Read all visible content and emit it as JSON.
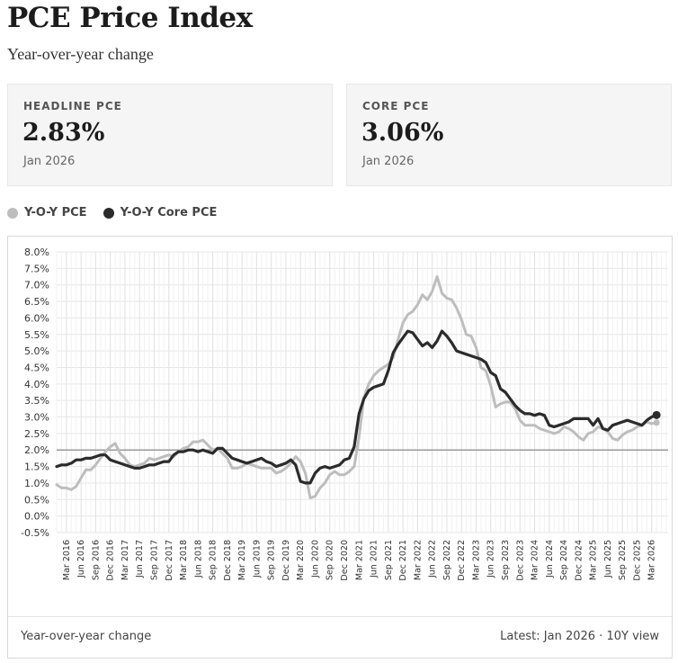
{
  "page": {
    "title": "PCE Price Index",
    "subtitle": "Year-over-year change"
  },
  "cards": [
    {
      "label": "HEADLINE PCE",
      "value": "2.83%",
      "date": "Jan 2026"
    },
    {
      "label": "CORE PCE",
      "value": "3.06%",
      "date": "Jan 2026"
    }
  ],
  "legend": [
    {
      "label": "Y-O-Y PCE",
      "color": "#bdbdbd"
    },
    {
      "label": "Y-O-Y Core PCE",
      "color": "#2b2b2b"
    }
  ],
  "footer": {
    "left": "Year-over-year change",
    "right": "Latest: Jan 2026 · 10Y view"
  },
  "chart_data": {
    "type": "line",
    "title": "",
    "xlabel": "",
    "ylabel": "",
    "ylim": [
      -0.5,
      8.0
    ],
    "ytick_step": 0.5,
    "ytick_labels": [
      "8.0%",
      "7.5%",
      "7.0%",
      "6.5%",
      "6.0%",
      "5.5%",
      "5.0%",
      "4.5%",
      "4.0%",
      "3.5%",
      "3.0%",
      "2.5%",
      "2.0%",
      "1.5%",
      "1.0%",
      "0.5%",
      "0.0%",
      "-0.5%"
    ],
    "reference_line": 2.0,
    "grid": true,
    "start_month": "Jan 2016",
    "end_month": "Jan 2026",
    "xtick_labels": [
      "Mar 2016",
      "Jun 2016",
      "Sep 2016",
      "Dec 2016",
      "Mar 2017",
      "Jun 2017",
      "Sep 2017",
      "Dec 2017",
      "Mar 2018",
      "Jun 2018",
      "Sep 2018",
      "Dec 2018",
      "Mar 2019",
      "Jun 2019",
      "Sep 2019",
      "Dec 2019",
      "Mar 2020",
      "Jun 2020",
      "Sep 2020",
      "Dec 2020",
      "Mar 2021",
      "Jun 2021",
      "Sep 2021",
      "Dec 2021",
      "Mar 2022",
      "Jun 2022",
      "Sep 2022",
      "Dec 2022",
      "Mar 2023",
      "Jun 2023",
      "Sep 2023",
      "Dec 2023",
      "Mar 2024",
      "Jun 2024",
      "Sep 2024",
      "Dec 2024",
      "Mar 2025",
      "Jun 2025",
      "Sep 2025",
      "Dec 2025",
      "Mar 2026"
    ],
    "series": [
      {
        "name": "Y-O-Y PCE",
        "color": "#bdbdbd",
        "values": [
          0.95,
          0.85,
          0.85,
          0.8,
          0.9,
          1.15,
          1.4,
          1.4,
          1.55,
          1.75,
          1.95,
          2.1,
          2.2,
          1.9,
          1.75,
          1.55,
          1.5,
          1.55,
          1.6,
          1.75,
          1.7,
          1.75,
          1.8,
          1.85,
          1.8,
          1.95,
          2.05,
          2.1,
          2.25,
          2.25,
          2.3,
          2.15,
          2.0,
          2.05,
          1.9,
          1.75,
          1.45,
          1.45,
          1.5,
          1.6,
          1.55,
          1.5,
          1.45,
          1.45,
          1.45,
          1.3,
          1.35,
          1.45,
          1.6,
          1.8,
          1.65,
          1.3,
          0.55,
          0.6,
          0.85,
          1.0,
          1.25,
          1.35,
          1.25,
          1.25,
          1.35,
          1.5,
          2.4,
          3.6,
          4.0,
          4.25,
          4.4,
          4.5,
          4.6,
          4.8,
          5.35,
          5.85,
          6.1,
          6.2,
          6.4,
          6.7,
          6.55,
          6.8,
          7.25,
          6.75,
          6.6,
          6.55,
          6.3,
          5.95,
          5.5,
          5.45,
          5.1,
          4.5,
          4.4,
          3.95,
          3.3,
          3.4,
          3.45,
          3.45,
          3.25,
          2.9,
          2.75,
          2.75,
          2.75,
          2.65,
          2.6,
          2.55,
          2.5,
          2.55,
          2.7,
          2.65,
          2.55,
          2.4,
          2.3,
          2.5,
          2.55,
          2.7,
          2.65,
          2.55,
          2.35,
          2.3,
          2.45,
          2.55,
          2.6,
          2.7,
          2.75,
          2.85,
          2.8,
          2.83
        ]
      },
      {
        "name": "Y-O-Y Core PCE",
        "color": "#2b2b2b",
        "values": [
          1.5,
          1.55,
          1.55,
          1.6,
          1.7,
          1.7,
          1.75,
          1.75,
          1.8,
          1.85,
          1.85,
          1.7,
          1.65,
          1.6,
          1.55,
          1.5,
          1.45,
          1.45,
          1.5,
          1.55,
          1.55,
          1.6,
          1.65,
          1.65,
          1.85,
          1.95,
          1.95,
          2.0,
          2.0,
          1.95,
          2.0,
          1.95,
          1.9,
          2.05,
          2.05,
          1.9,
          1.75,
          1.7,
          1.65,
          1.6,
          1.65,
          1.7,
          1.75,
          1.65,
          1.6,
          1.5,
          1.55,
          1.6,
          1.7,
          1.55,
          1.05,
          1.0,
          1.0,
          1.3,
          1.45,
          1.5,
          1.45,
          1.5,
          1.55,
          1.7,
          1.75,
          2.1,
          3.1,
          3.55,
          3.8,
          3.9,
          3.95,
          4.0,
          4.4,
          4.95,
          5.2,
          5.4,
          5.6,
          5.55,
          5.35,
          5.15,
          5.25,
          5.1,
          5.3,
          5.6,
          5.45,
          5.25,
          5.0,
          4.95,
          4.9,
          4.85,
          4.8,
          4.75,
          4.65,
          4.35,
          4.25,
          3.85,
          3.75,
          3.55,
          3.35,
          3.2,
          3.1,
          3.1,
          3.05,
          3.1,
          3.05,
          2.75,
          2.7,
          2.75,
          2.8,
          2.85,
          2.95,
          2.95,
          2.95,
          2.95,
          2.75,
          2.95,
          2.65,
          2.6,
          2.75,
          2.8,
          2.85,
          2.9,
          2.85,
          2.8,
          2.75,
          2.9,
          3.0,
          3.06
        ]
      }
    ]
  }
}
